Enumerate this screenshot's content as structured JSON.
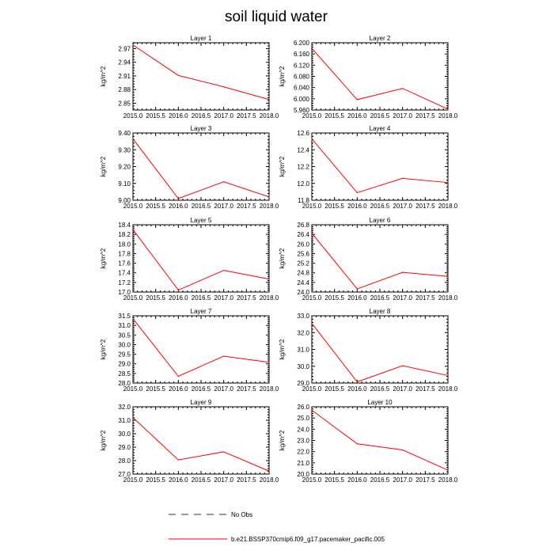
{
  "figure": {
    "title": "soil liquid water",
    "legend": [
      {
        "label": "No Obs",
        "color": "#2a2a8a",
        "style": "dashed"
      },
      {
        "label": "b.e21.BSSP370cmip6.f09_g17.pacemaker_pacific.005",
        "color": "#ff0000",
        "style": "solid"
      }
    ]
  },
  "chart_data": [
    {
      "type": "line",
      "title": "Layer 1",
      "ylabel": "kg/m^2",
      "x": [
        2015,
        2016,
        2017,
        2018
      ],
      "xticks": [
        "2015.0",
        "2015.5",
        "2016.0",
        "2016.5",
        "2017.0",
        "2017.5",
        "2018.0"
      ],
      "xlim": [
        2015,
        2018
      ],
      "ylim": [
        2.835,
        2.983
      ],
      "yticks": [
        "2.85",
        "2.88",
        "2.91",
        "2.94",
        "2.97"
      ],
      "series": [
        {
          "values": [
            2.978,
            2.911,
            2.886,
            2.858
          ],
          "color": "#ff0000"
        }
      ]
    },
    {
      "type": "line",
      "title": "Layer 2",
      "ylabel": "kg/m^2",
      "x": [
        2015,
        2016,
        2017,
        2018
      ],
      "xticks": [
        "2015.0",
        "2015.5",
        "2016.0",
        "2016.5",
        "2017.0",
        "2017.5",
        "2018.0"
      ],
      "xlim": [
        2015,
        2018
      ],
      "ylim": [
        5.96,
        6.2
      ],
      "yticks": [
        "5.960",
        "6.000",
        "6.040",
        "6.080",
        "6.120",
        "6.160",
        "6.200"
      ],
      "series": [
        {
          "values": [
            6.18,
            5.997,
            6.037,
            5.963
          ],
          "color": "#ff0000"
        }
      ]
    },
    {
      "type": "line",
      "title": "Layer 3",
      "ylabel": "kg/m^2",
      "x": [
        2015,
        2016,
        2017,
        2018
      ],
      "xticks": [
        "2015.0",
        "2015.5",
        "2016.0",
        "2016.5",
        "2017.0",
        "2017.5",
        "2018.0"
      ],
      "xlim": [
        2015,
        2018
      ],
      "ylim": [
        9.0,
        9.4
      ],
      "yticks": [
        "9.00",
        "9.10",
        "9.20",
        "9.30",
        "9.40"
      ],
      "series": [
        {
          "values": [
            9.365,
            9.01,
            9.11,
            9.02
          ],
          "color": "#ff0000"
        }
      ]
    },
    {
      "type": "line",
      "title": "Layer 4",
      "ylabel": "kg/m^2",
      "x": [
        2015,
        2016,
        2017,
        2018
      ],
      "xticks": [
        "2015.0",
        "2015.5",
        "2016.0",
        "2016.5",
        "2017.0",
        "2017.5",
        "2018.0"
      ],
      "xlim": [
        2015,
        2018
      ],
      "ylim": [
        11.8,
        12.6
      ],
      "yticks": [
        "11.8",
        "12.0",
        "12.2",
        "12.4",
        "12.6"
      ],
      "series": [
        {
          "values": [
            12.53,
            11.89,
            12.06,
            12.01
          ],
          "color": "#ff0000"
        }
      ]
    },
    {
      "type": "line",
      "title": "Layer 5",
      "ylabel": "kg/m^2",
      "x": [
        2015,
        2016,
        2017,
        2018
      ],
      "xticks": [
        "2015.0",
        "2015.5",
        "2016.0",
        "2016.5",
        "2017.0",
        "2017.5",
        "2018.0"
      ],
      "xlim": [
        2015,
        2018
      ],
      "ylim": [
        17.0,
        18.4
      ],
      "yticks": [
        "17.0",
        "17.2",
        "17.4",
        "17.6",
        "17.8",
        "18.0",
        "18.2",
        "18.4"
      ],
      "series": [
        {
          "values": [
            18.3,
            17.04,
            17.45,
            17.27
          ],
          "color": "#ff0000"
        }
      ]
    },
    {
      "type": "line",
      "title": "Layer 6",
      "ylabel": "kg/m^2",
      "x": [
        2015,
        2016,
        2017,
        2018
      ],
      "xticks": [
        "2015.0",
        "2015.5",
        "2016.0",
        "2016.5",
        "2017.0",
        "2017.5",
        "2018.0"
      ],
      "xlim": [
        2015,
        2018
      ],
      "ylim": [
        24.0,
        26.8
      ],
      "yticks": [
        "24.0",
        "24.4",
        "24.8",
        "25.2",
        "25.6",
        "26.0",
        "26.4",
        "26.8"
      ],
      "series": [
        {
          "values": [
            26.45,
            24.13,
            24.82,
            24.65
          ],
          "color": "#ff0000"
        }
      ]
    },
    {
      "type": "line",
      "title": "Layer 7",
      "ylabel": "kg/m^2",
      "x": [
        2015,
        2016,
        2017,
        2018
      ],
      "xticks": [
        "2015.0",
        "2015.5",
        "2016.0",
        "2016.5",
        "2017.0",
        "2017.5",
        "2018.0"
      ],
      "xlim": [
        2015,
        2018
      ],
      "ylim": [
        28.0,
        31.5
      ],
      "yticks": [
        "28.0",
        "28.5",
        "29.0",
        "29.5",
        "30.0",
        "30.5",
        "31.0",
        "31.5"
      ],
      "series": [
        {
          "values": [
            31.35,
            28.35,
            29.4,
            29.08
          ],
          "color": "#ff0000"
        }
      ]
    },
    {
      "type": "line",
      "title": "Layer 8",
      "ylabel": "kg/m^2",
      "x": [
        2015,
        2016,
        2017,
        2018
      ],
      "xticks": [
        "2015.0",
        "2015.5",
        "2016.0",
        "2016.5",
        "2017.0",
        "2017.5",
        "2018.0"
      ],
      "xlim": [
        2015,
        2018
      ],
      "ylim": [
        29.0,
        33.0
      ],
      "yticks": [
        "29.0",
        "30.0",
        "31.0",
        "32.0",
        "33.0"
      ],
      "series": [
        {
          "values": [
            32.55,
            29.07,
            30.03,
            29.45
          ],
          "color": "#ff0000"
        }
      ]
    },
    {
      "type": "line",
      "title": "Layer 9",
      "ylabel": "kg/m^2",
      "x": [
        2015,
        2016,
        2017,
        2018
      ],
      "xticks": [
        "2015.0",
        "2015.5",
        "2016.0",
        "2016.5",
        "2017.0",
        "2017.5",
        "2018.0"
      ],
      "xlim": [
        2015,
        2018
      ],
      "ylim": [
        27.0,
        32.0
      ],
      "yticks": [
        "27.0",
        "28.0",
        "29.0",
        "30.0",
        "31.0",
        "32.0"
      ],
      "series": [
        {
          "values": [
            31.2,
            28.05,
            28.65,
            27.22
          ],
          "color": "#ff0000"
        }
      ]
    },
    {
      "type": "line",
      "title": "Layer 10",
      "ylabel": "kg/m^2",
      "x": [
        2015,
        2016,
        2017,
        2018
      ],
      "xticks": [
        "2015.0",
        "2015.5",
        "2016.0",
        "2016.5",
        "2017.0",
        "2017.5",
        "2018.0"
      ],
      "xlim": [
        2015,
        2018
      ],
      "ylim": [
        20.0,
        26.0
      ],
      "yticks": [
        "20.0",
        "21.0",
        "22.0",
        "23.0",
        "24.0",
        "25.0",
        "26.0"
      ],
      "series": [
        {
          "values": [
            25.7,
            22.7,
            22.15,
            20.35
          ],
          "color": "#ff0000"
        }
      ]
    }
  ]
}
